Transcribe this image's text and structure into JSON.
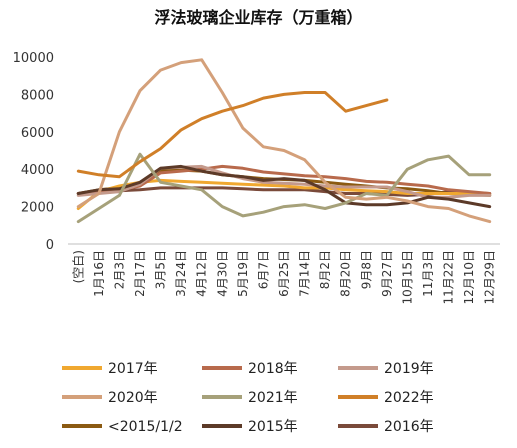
{
  "chart_data": {
    "type": "line",
    "title": "浮法玻璃企业库存（万重箱）",
    "ylim": [
      0,
      10000
    ],
    "yticks": [
      0,
      2000,
      4000,
      6000,
      8000,
      10000
    ],
    "grid": false,
    "legend_position": "bottom",
    "x": [
      "(空白)",
      "1月16日",
      "2月3日",
      "2月17日",
      "3月5日",
      "3月24日",
      "4月12日",
      "4月30日",
      "5月19日",
      "6月7日",
      "6月25日",
      "7月14日",
      "8月2日",
      "8月20日",
      "9月8日",
      "9月27日",
      "10月15日",
      "11月3日",
      "11月22日",
      "12月10日",
      "12月29日"
    ],
    "series": [
      {
        "name": "2017年",
        "color": "#f0a830",
        "values": [
          1900,
          2800,
          3100,
          3300,
          3400,
          3350,
          3300,
          3250,
          3200,
          3150,
          3100,
          3000,
          3000,
          2900,
          2850,
          2800,
          2700,
          2700,
          2700,
          2700,
          2650
        ]
      },
      {
        "name": "2018年",
        "color": "#b86a4c",
        "values": [
          2700,
          2800,
          2900,
          3100,
          3800,
          3900,
          4000,
          4150,
          4050,
          3850,
          3750,
          3650,
          3600,
          3500,
          3350,
          3300,
          3200,
          3100,
          2900,
          2800,
          2700
        ]
      },
      {
        "name": "2019年",
        "color": "#c49a8c",
        "values": [
          2600,
          2700,
          2800,
          3200,
          4050,
          4100,
          4150,
          3800,
          3500,
          3300,
          3250,
          3200,
          3100,
          3050,
          3050,
          3050,
          2800,
          2500,
          2500,
          2600,
          2600
        ]
      },
      {
        "name": "2020年",
        "color": "#d4a07a",
        "values": [
          2000,
          2700,
          6000,
          8200,
          9300,
          9700,
          9850,
          8100,
          6200,
          5200,
          5000,
          4500,
          3300,
          2500,
          2400,
          2500,
          2300,
          2000,
          1900,
          1500,
          1200
        ]
      },
      {
        "name": "2021年",
        "color": "#a6a17a",
        "values": [
          1200,
          1900,
          2600,
          4800,
          3300,
          3100,
          2900,
          2000,
          1500,
          1700,
          2000,
          2100,
          1900,
          2200,
          2700,
          2600,
          4000,
          4500,
          4700,
          3700,
          3700
        ]
      },
      {
        "name": "2022年",
        "color": "#d07f28",
        "values": [
          3900,
          3700,
          3600,
          4400,
          5100,
          6100,
          6700,
          7100,
          7400,
          7800,
          8000,
          8100,
          8100,
          7100,
          7400,
          7700,
          null,
          null,
          null,
          null,
          null
        ]
      },
      {
        "name": "<2015/1/2",
        "color": "#8b5a12",
        "values": [
          2700,
          2900,
          3000,
          3200,
          3950,
          3950,
          3900,
          3700,
          3600,
          3500,
          3450,
          3400,
          3300,
          3200,
          3100,
          3000,
          2950,
          2850,
          2700,
          2650,
          2600
        ]
      },
      {
        "name": "2015年",
        "color": "#5c3a28",
        "values": [
          2700,
          2900,
          2950,
          3300,
          4050,
          4150,
          3900,
          3700,
          3600,
          3400,
          3500,
          3400,
          2900,
          2200,
          2100,
          2100,
          2200,
          2500,
          2400,
          2200,
          2000
        ]
      },
      {
        "name": "2016年",
        "color": "#7a4a3a",
        "values": [
          2700,
          2800,
          2850,
          2900,
          3000,
          3000,
          3000,
          3000,
          2950,
          2900,
          2900,
          2900,
          2800,
          2700,
          2700,
          2650,
          2600,
          2650,
          2800,
          2750,
          2700
        ]
      }
    ]
  }
}
